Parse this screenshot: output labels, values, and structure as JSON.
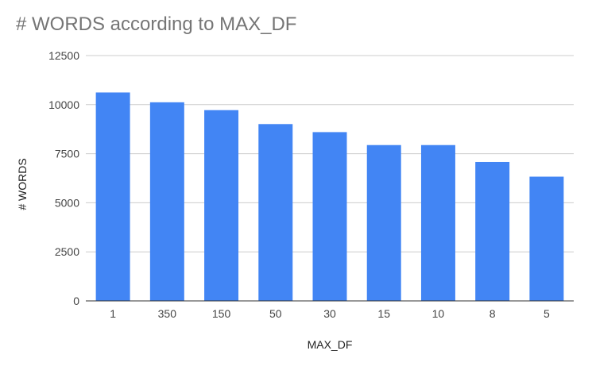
{
  "chart_data": {
    "type": "bar",
    "title": "# WORDS according to MAX_DF",
    "xlabel": "MAX_DF",
    "ylabel": "# WORDS",
    "categories": [
      "1",
      "350",
      "150",
      "50",
      "30",
      "15",
      "10",
      "8",
      "5"
    ],
    "values": [
      10620,
      10120,
      9720,
      9010,
      8600,
      7940,
      7940,
      7080,
      6330
    ],
    "ylim": [
      0,
      12500
    ],
    "yticks": [
      "0",
      "2500",
      "5000",
      "7500",
      "10000",
      "12500"
    ],
    "grid": true,
    "legend": "none",
    "colors": {
      "bar": "#4285f4",
      "grid": "#cccccc",
      "axis": "#333333"
    }
  }
}
